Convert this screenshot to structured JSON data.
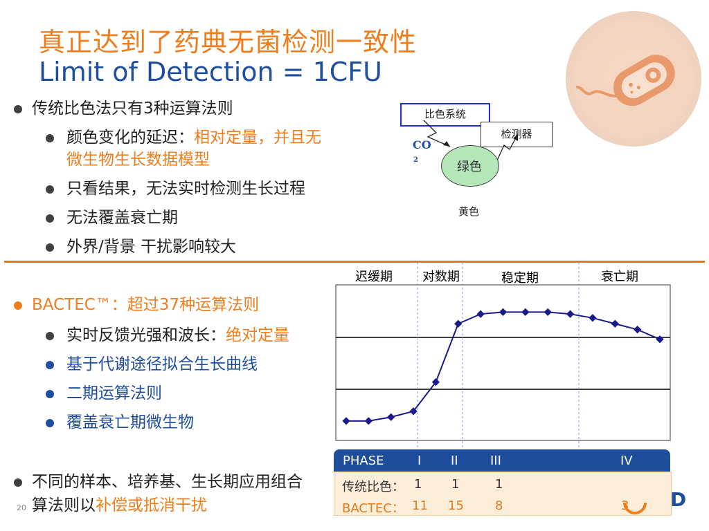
{
  "title": {
    "cn": "真正达到了药典无菌检测一致性",
    "en": "Limit of Detection = 1CFU"
  },
  "left_top": {
    "main": "传统比色法只有3种运算法则",
    "sub1_gray": "颜色变化的延迟：",
    "sub1_orange": "相对定量，并且无",
    "sub1_orange2": "微生物生长数据模型",
    "sub2": "只看结果，无法实时检测生长过程",
    "sub3": "无法覆盖衰亡期",
    "sub4": "外界/背景 干扰影响较大"
  },
  "diagram": {
    "box1": "比色系统",
    "box2": "检测器",
    "co2": "CO",
    "co2_sub": "2",
    "ellipse": "绿色",
    "below": "黄色"
  },
  "bactec": {
    "main": "BACTEC™：超过37种运算法则",
    "sub1_gray": "实时反馈光强和波长：",
    "sub1_orange": "绝对定量",
    "sub2": "基于代谢途径拟合生长曲线",
    "sub3": "二期运算法则",
    "sub4": "覆盖衰亡期微生物"
  },
  "bottom": {
    "line1": "不同的样本、培养基、生长期应用组合",
    "line2_gray": "算法则以",
    "line2_orange": "补偿或抵消干扰",
    "page": "20"
  },
  "phases": [
    "迟缓期",
    "对数期",
    "稳定期",
    "衰亡期"
  ],
  "table": {
    "header": [
      "PHASE",
      "I",
      "II",
      "III",
      "IV"
    ],
    "rows": [
      [
        "传统比色：",
        "1",
        "1",
        "1",
        ""
      ],
      [
        "BACTEC：",
        "11",
        "15",
        "8",
        "3"
      ]
    ]
  },
  "logo_partial": "D",
  "colors": {
    "orange": "#f07d1c",
    "blue": "#1f4e9c",
    "curve": "#1a1a8c"
  },
  "chart_data": {
    "type": "line",
    "x": [
      0,
      1,
      2,
      3,
      4,
      5,
      6,
      7,
      8,
      9,
      10,
      11,
      12,
      13,
      14
    ],
    "series": [
      {
        "values": [
          1,
          1,
          1.2,
          1.5,
          3,
          6,
          6.5,
          6.6,
          6.6,
          6.6,
          6.5,
          6.3,
          6.0,
          5.7,
          5.2
        ]
      }
    ],
    "ylim": [
      0,
      8
    ],
    "grid": "two horizontal reference lines"
  }
}
